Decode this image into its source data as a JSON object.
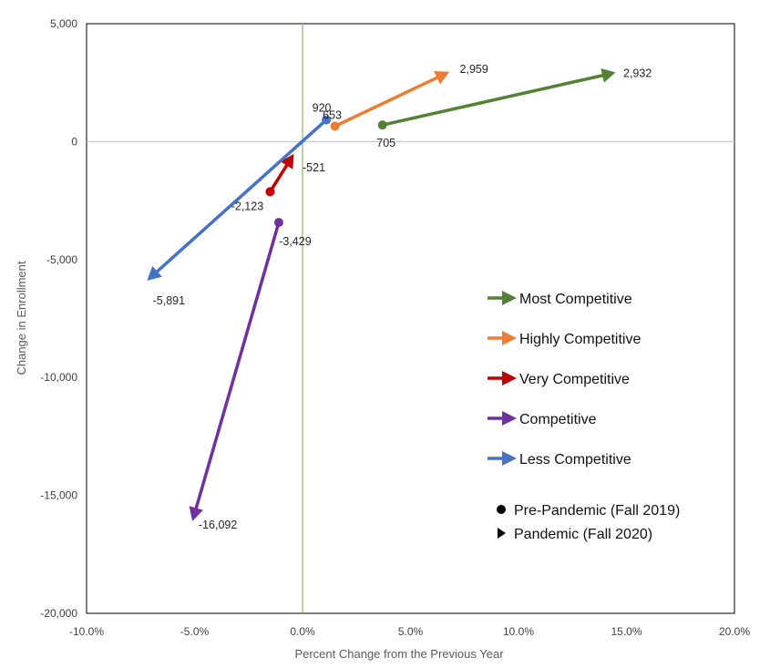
{
  "chart_data": {
    "type": "scatter",
    "title": "",
    "xlabel": "Percent Change from the Previous Year",
    "ylabel": "Change in Enrollment",
    "xlim": [
      -10.0,
      20.0
    ],
    "ylim": [
      -20000,
      5000
    ],
    "x_ticks": [
      -10,
      -5,
      0,
      5,
      10,
      15,
      20
    ],
    "x_tick_labels": [
      "-10.0%",
      "-5.0%",
      "0.0%",
      "5.0%",
      "10.0%",
      "15.0%",
      "20.0%"
    ],
    "y_ticks": [
      5000,
      0,
      -5000,
      -10000,
      -15000,
      -20000
    ],
    "y_tick_labels": [
      "5,000",
      "0",
      "-5,000",
      "-10,000",
      "-15,000",
      "-20,000"
    ],
    "grid": false,
    "legend_position": "right",
    "series": [
      {
        "name": "Most Competitive",
        "color": "#548235",
        "start": {
          "x": 3.7,
          "y": 705,
          "label": "705"
        },
        "end": {
          "x": 14.5,
          "y": 2932,
          "label": "2,932"
        }
      },
      {
        "name": "Highly Competitive",
        "color": "#ED7D31",
        "start": {
          "x": 1.5,
          "y": 653,
          "label": "653"
        },
        "end": {
          "x": 6.8,
          "y": 2959,
          "label": "2,959"
        }
      },
      {
        "name": "Very Competitive",
        "color": "#C00000",
        "start": {
          "x": -1.5,
          "y": -2123,
          "label": "-2,123"
        },
        "end": {
          "x": -0.4,
          "y": -521,
          "label": "-521"
        }
      },
      {
        "name": "Competitive",
        "color": "#7030A0",
        "start": {
          "x": -1.1,
          "y": -3429,
          "label": "-3,429"
        },
        "end": {
          "x": -5.1,
          "y": -16092,
          "label": "-16,092"
        }
      },
      {
        "name": "Less Competitive",
        "color": "#4472C4",
        "start": {
          "x": 1.1,
          "y": 920,
          "label": "920"
        },
        "end": {
          "x": -7.2,
          "y": -5891,
          "label": "-5,891"
        }
      }
    ],
    "marker_legend": [
      {
        "marker": "circle",
        "label": "Pre-Pandemic (Fall 2019)"
      },
      {
        "marker": "triangle",
        "label": "Pandemic (Fall 2020)"
      }
    ]
  }
}
